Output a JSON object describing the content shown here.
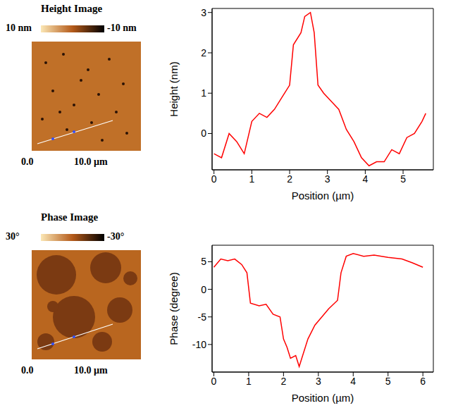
{
  "chart_data": [
    {
      "type": "line",
      "x_label": "Position (µm)",
      "y_label": "Height (nm)",
      "xlim": [
        -0.05,
        5.8
      ],
      "xticks": [
        0,
        1,
        2,
        3,
        4,
        5
      ],
      "ylim": [
        -0.9,
        3.1
      ],
      "yticks": [
        0,
        1,
        2,
        3
      ],
      "series": [
        {
          "color": "#ff0000",
          "x": [
            0,
            0.2,
            0.4,
            0.6,
            0.8,
            1.0,
            1.2,
            1.4,
            1.6,
            1.8,
            2.0,
            2.1,
            2.3,
            2.4,
            2.55,
            2.65,
            2.75,
            2.9,
            3.1,
            3.3,
            3.5,
            3.7,
            3.9,
            4.1,
            4.3,
            4.5,
            4.7,
            4.9,
            5.1,
            5.3,
            5.5,
            5.6
          ],
          "values": [
            -0.5,
            -0.6,
            0,
            -0.2,
            -0.5,
            0.3,
            0.5,
            0.4,
            0.6,
            0.9,
            1.2,
            2.2,
            2.5,
            2.9,
            3.0,
            2.5,
            1.2,
            1.0,
            0.8,
            0.6,
            0.1,
            -0.2,
            -0.6,
            -0.8,
            -0.7,
            -0.7,
            -0.4,
            -0.5,
            -0.1,
            0.0,
            0.3,
            0.5
          ]
        }
      ]
    },
    {
      "type": "line",
      "x_label": "Position (µm)",
      "y_label": "Phase (degree)",
      "xlim": [
        -0.05,
        6.3
      ],
      "xticks": [
        0,
        1,
        2,
        3,
        4,
        5,
        6
      ],
      "ylim": [
        -15,
        8
      ],
      "yticks": [
        -10,
        -5,
        0,
        5
      ],
      "series": [
        {
          "color": "#ff0000",
          "x": [
            0,
            0.2,
            0.4,
            0.6,
            0.8,
            0.95,
            1.05,
            1.3,
            1.5,
            1.7,
            1.9,
            2.0,
            2.1,
            2.2,
            2.35,
            2.45,
            2.55,
            2.7,
            2.9,
            3.1,
            3.3,
            3.55,
            3.65,
            3.8,
            4.0,
            4.3,
            4.6,
            5.0,
            5.4,
            5.7,
            6.0
          ],
          "values": [
            4,
            5.5,
            5.2,
            5.5,
            4.5,
            3,
            -2.5,
            -3,
            -2.7,
            -4.5,
            -5,
            -9,
            -10.5,
            -12.5,
            -12,
            -14,
            -12,
            -9,
            -6.5,
            -5,
            -3.5,
            -2,
            3,
            6,
            6.5,
            6,
            6.2,
            5.8,
            5.5,
            4.8,
            4
          ]
        }
      ]
    }
  ],
  "images": [
    {
      "title": "Height Image",
      "colorbar_labels": [
        "10 nm",
        "-10 nm"
      ],
      "axis_labels": [
        "0.0",
        "10.0 µm"
      ]
    },
    {
      "title": "Phase Image",
      "colorbar_labels": [
        "30°",
        "-30°"
      ],
      "axis_labels": [
        "0.0",
        "10.0 µm"
      ]
    }
  ]
}
